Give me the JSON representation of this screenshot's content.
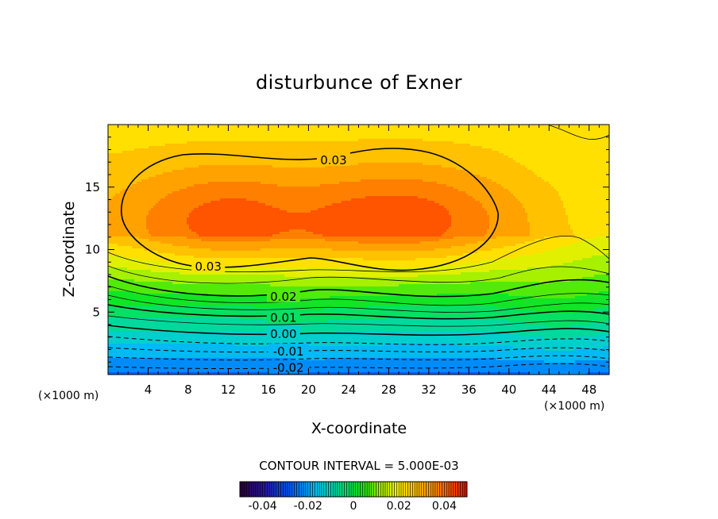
{
  "chart_data": {
    "type": "heatmap",
    "title": "disturbunce of Exner",
    "xlabel": "X-coordinate",
    "ylabel": "Z-coordinate",
    "x_unit": "(×1000 m)",
    "z_unit": "(×1000 m)",
    "xlim": [
      0,
      50
    ],
    "ylim": [
      0,
      20
    ],
    "x_ticks": [
      "4",
      "8",
      "12",
      "16",
      "20",
      "24",
      "28",
      "32",
      "36",
      "40",
      "44",
      "48"
    ],
    "y_ticks": [
      "5",
      "10",
      "15"
    ],
    "contour_interval_text": "CONTOUR INTERVAL = 5.000E-03",
    "contour_labels": [
      {
        "text": "0.03",
        "x": 22.5,
        "z": 17.2
      },
      {
        "text": "0.03",
        "x": 10.0,
        "z": 8.7
      },
      {
        "text": "0.02",
        "x": 17.5,
        "z": 6.3
      },
      {
        "text": "0.01",
        "x": 17.5,
        "z": 4.6
      },
      {
        "text": "0.00",
        "x": 17.5,
        "z": 3.3
      },
      {
        "text": "-0.01",
        "x": 18.0,
        "z": 1.9
      },
      {
        "text": "-0.02",
        "x": 18.0,
        "z": 0.6
      }
    ],
    "field_maxima": [
      {
        "x": 12,
        "z": 12.2,
        "value": 0.039
      },
      {
        "x": 30,
        "z": 12.0,
        "value": 0.04
      }
    ],
    "colorbar": {
      "range": [
        -0.05,
        0.05
      ],
      "ticks": [
        "-0.04",
        "-0.02",
        "0",
        "0.02",
        "0.04"
      ],
      "tick_values": [
        -0.04,
        -0.02,
        0,
        0.02,
        0.04
      ]
    }
  }
}
